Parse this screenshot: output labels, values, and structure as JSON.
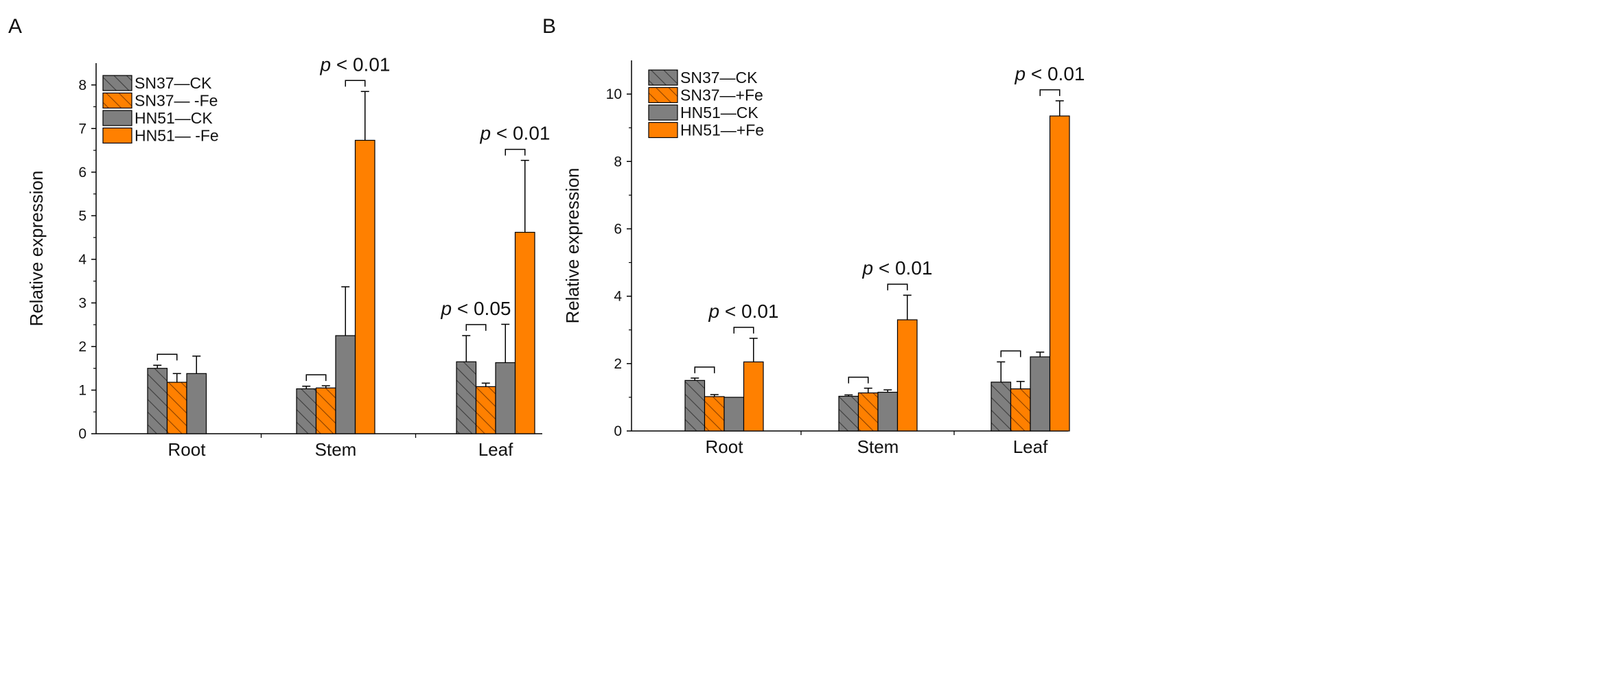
{
  "chart_data": [
    {
      "panel_label": "A",
      "type": "bar",
      "categories": [
        "Root",
        "Stem",
        "Leaf"
      ],
      "ylabel": "Relative expression",
      "ylim": [
        0,
        8.5
      ],
      "yticks": [
        "0",
        "1",
        "2",
        "3",
        "4",
        "5",
        "6",
        "7",
        "8"
      ],
      "legend_position": "top-left",
      "series": [
        {
          "name": "SN37—CK",
          "color": "#7f7f7f",
          "hatch": true,
          "values": [
            1.5,
            1.03,
            1.65
          ],
          "errors": [
            0.07,
            0.06,
            0.6
          ]
        },
        {
          "name": "SN37— -Fe",
          "color": "#ff8000",
          "hatch": true,
          "values": [
            1.18,
            1.05,
            1.08
          ],
          "errors": [
            0.2,
            0.05,
            0.08
          ]
        },
        {
          "name": "HN51—CK",
          "color": "#7f7f7f",
          "hatch": false,
          "values": [
            1.38,
            2.25,
            1.63
          ],
          "errors": [
            0.4,
            1.12,
            0.88
          ]
        },
        {
          "name": "HN51— -Fe",
          "color": "#ff8000",
          "hatch": false,
          "values": [
            null,
            6.73,
            4.62
          ],
          "errors": [
            null,
            1.12,
            1.65
          ]
        }
      ],
      "annotations": [
        {
          "category": "Root",
          "pair": "SN37",
          "text": ""
        },
        {
          "category": "Stem",
          "pair": "SN37",
          "text": ""
        },
        {
          "category": "Stem",
          "pair": "HN51",
          "text": "p < 0.01"
        },
        {
          "category": "Leaf",
          "pair": "SN37",
          "text": "p < 0.05"
        },
        {
          "category": "Leaf",
          "pair": "HN51",
          "text": "p < 0.01"
        }
      ]
    },
    {
      "panel_label": "B",
      "type": "bar",
      "categories": [
        "Root",
        "Stem",
        "Leaf"
      ],
      "ylabel": "Relative expression",
      "ylim": [
        0,
        11
      ],
      "yticks": [
        "0",
        "2",
        "4",
        "6",
        "8",
        "10"
      ],
      "legend_position": "top-left",
      "series": [
        {
          "name": "SN37—CK",
          "color": "#7f7f7f",
          "hatch": true,
          "values": [
            1.5,
            1.03,
            1.45
          ],
          "errors": [
            0.07,
            0.04,
            0.6
          ]
        },
        {
          "name": "SN37—+Fe",
          "color": "#ff8000",
          "hatch": true,
          "values": [
            1.02,
            1.13,
            1.25
          ],
          "errors": [
            0.06,
            0.14,
            0.22
          ]
        },
        {
          "name": "HN51—CK",
          "color": "#7f7f7f",
          "hatch": false,
          "values": [
            1.0,
            1.15,
            2.2
          ],
          "errors": [
            0.0,
            0.07,
            0.14
          ]
        },
        {
          "name": "HN51—+Fe",
          "color": "#ff8000",
          "hatch": false,
          "values": [
            2.05,
            3.3,
            9.35
          ],
          "errors": [
            0.7,
            0.73,
            0.45
          ]
        }
      ],
      "annotations": [
        {
          "category": "Root",
          "pair": "SN37",
          "text": ""
        },
        {
          "category": "Root",
          "pair": "HN51",
          "text": "p < 0.01"
        },
        {
          "category": "Stem",
          "pair": "SN37",
          "text": ""
        },
        {
          "category": "Stem",
          "pair": "HN51",
          "text": "p < 0.01"
        },
        {
          "category": "Leaf",
          "pair": "SN37",
          "text": ""
        },
        {
          "category": "Leaf",
          "pair": "HN51",
          "text": "p < 0.01"
        }
      ]
    }
  ]
}
